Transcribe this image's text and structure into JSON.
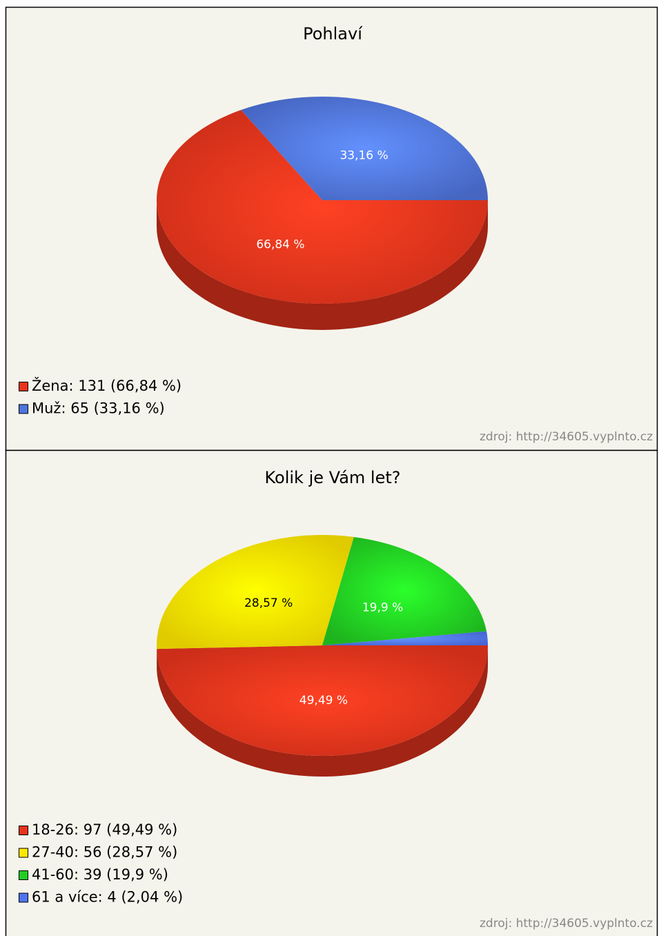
{
  "chart_data": [
    {
      "type": "pie",
      "title": "Pohlaví",
      "categories": [
        "Žena",
        "Muž"
      ],
      "values": [
        66.84,
        33.16
      ],
      "value_labels": [
        "66,84 %",
        "33,16 %"
      ],
      "colors": [
        "#e8341c",
        "#4f74dc"
      ],
      "legend": [
        "Žena: 131 (66,84 %)",
        "Muž: 65 (33,16 %)"
      ],
      "source": "zdroj: http://34605.vyplnto.cz"
    },
    {
      "type": "pie",
      "title": "Kolik je Vám let?",
      "categories": [
        "18-26",
        "27-40",
        "41-60",
        "61 a více"
      ],
      "values": [
        49.49,
        28.57,
        19.9,
        2.04
      ],
      "value_labels": [
        "49,49 %",
        "28,57 %",
        "19,9 %",
        null
      ],
      "colors": [
        "#e8341c",
        "#ffe600",
        "#22cc22",
        "#4f74f0"
      ],
      "legend": [
        "18-26: 97 (49,49 %)",
        "27-40: 56 (28,57 %)",
        "41-60: 39 (19,9 %)",
        "61 a více: 4 (2,04 %)"
      ],
      "source": "zdroj: http://34605.vyplnto.cz"
    }
  ]
}
